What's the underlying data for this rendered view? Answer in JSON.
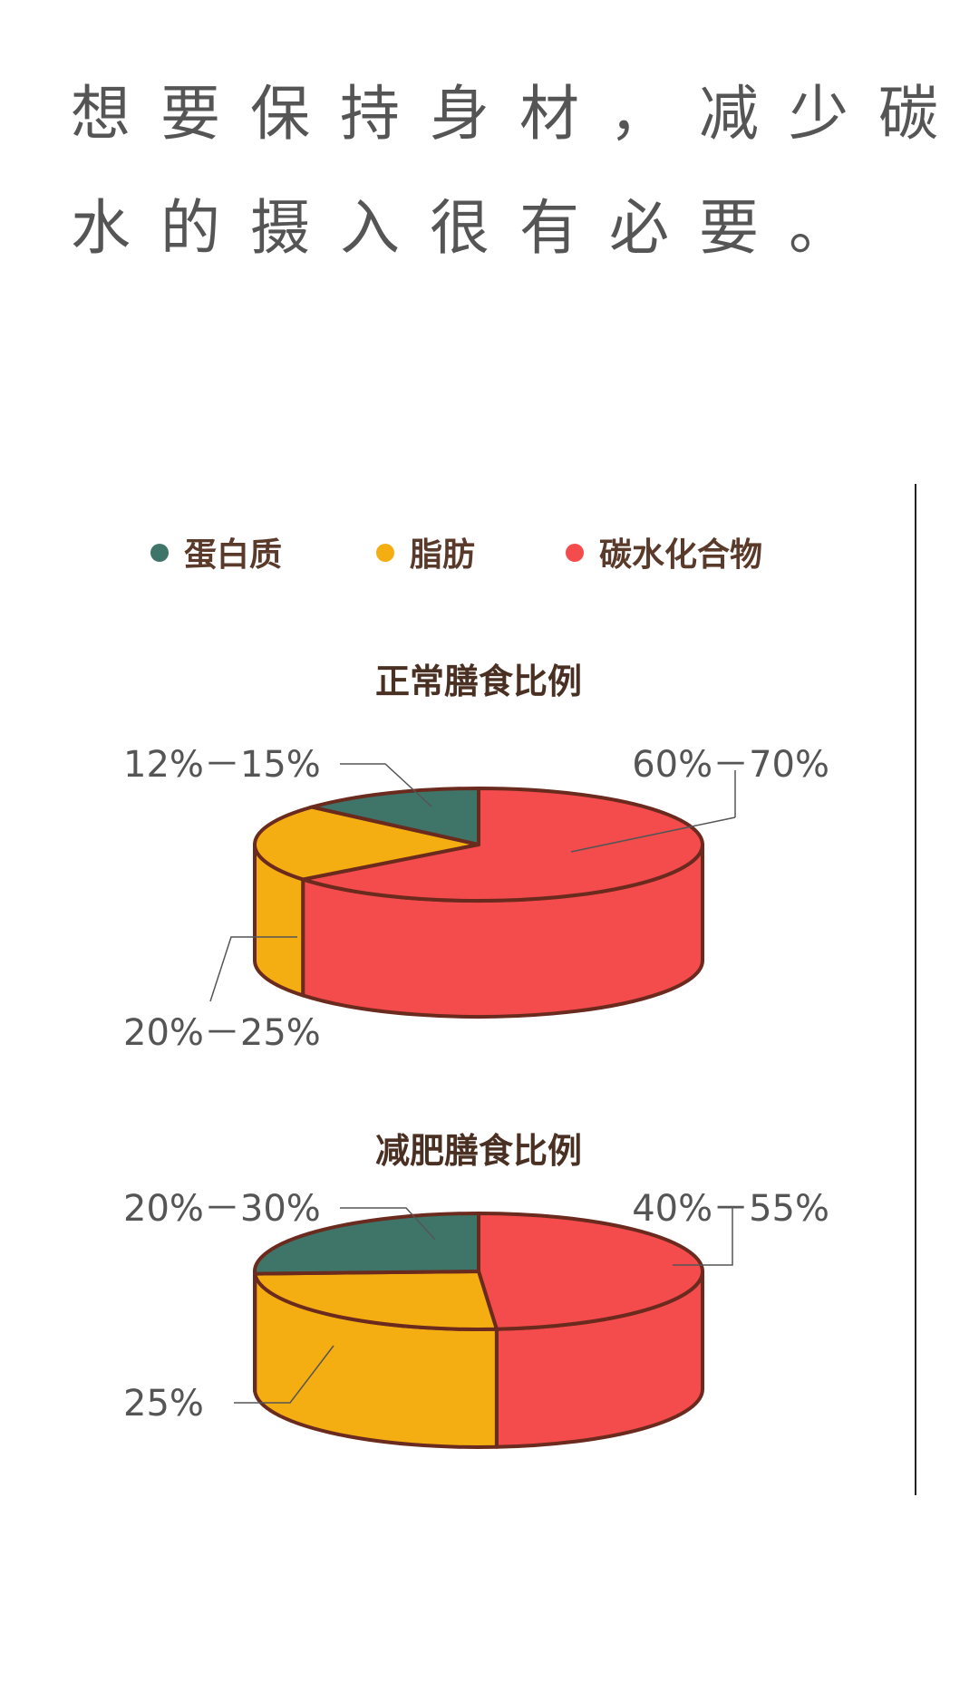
{
  "heading": {
    "line1": "想要保持身材，减少碳",
    "line2": "水的摄入很有必要。"
  },
  "chart_data": [
    {
      "type": "pie",
      "style": "3d",
      "title": "正常膳食比例",
      "legend": {
        "position": "top",
        "entries": [
          "蛋白质",
          "脂肪",
          "碳水化合物"
        ]
      },
      "slices": [
        {
          "name": "蛋白质",
          "label": "12%－15%",
          "range": [
            12,
            15
          ],
          "color": "#3f7468"
        },
        {
          "name": "脂肪",
          "label": "20%－25%",
          "range": [
            20,
            25
          ],
          "color": "#f5ae12"
        },
        {
          "name": "碳水化合物",
          "label": "60%－70%",
          "range": [
            60,
            70
          ],
          "color": "#f44b4c"
        }
      ]
    },
    {
      "type": "pie",
      "style": "3d",
      "title": "减肥膳食比例",
      "slices": [
        {
          "name": "蛋白质",
          "label": "20%－30%",
          "range": [
            20,
            30
          ],
          "color": "#3f7468"
        },
        {
          "name": "脂肪",
          "label": "25%",
          "range": [
            25,
            25
          ],
          "color": "#f5ae12"
        },
        {
          "name": "碳水化合物",
          "label": "40%－55%",
          "range": [
            40,
            55
          ],
          "color": "#f44b4c"
        }
      ]
    }
  ],
  "colors": {
    "outline": "#6b2a1e",
    "text": "#555555",
    "title": "#4a3022"
  }
}
